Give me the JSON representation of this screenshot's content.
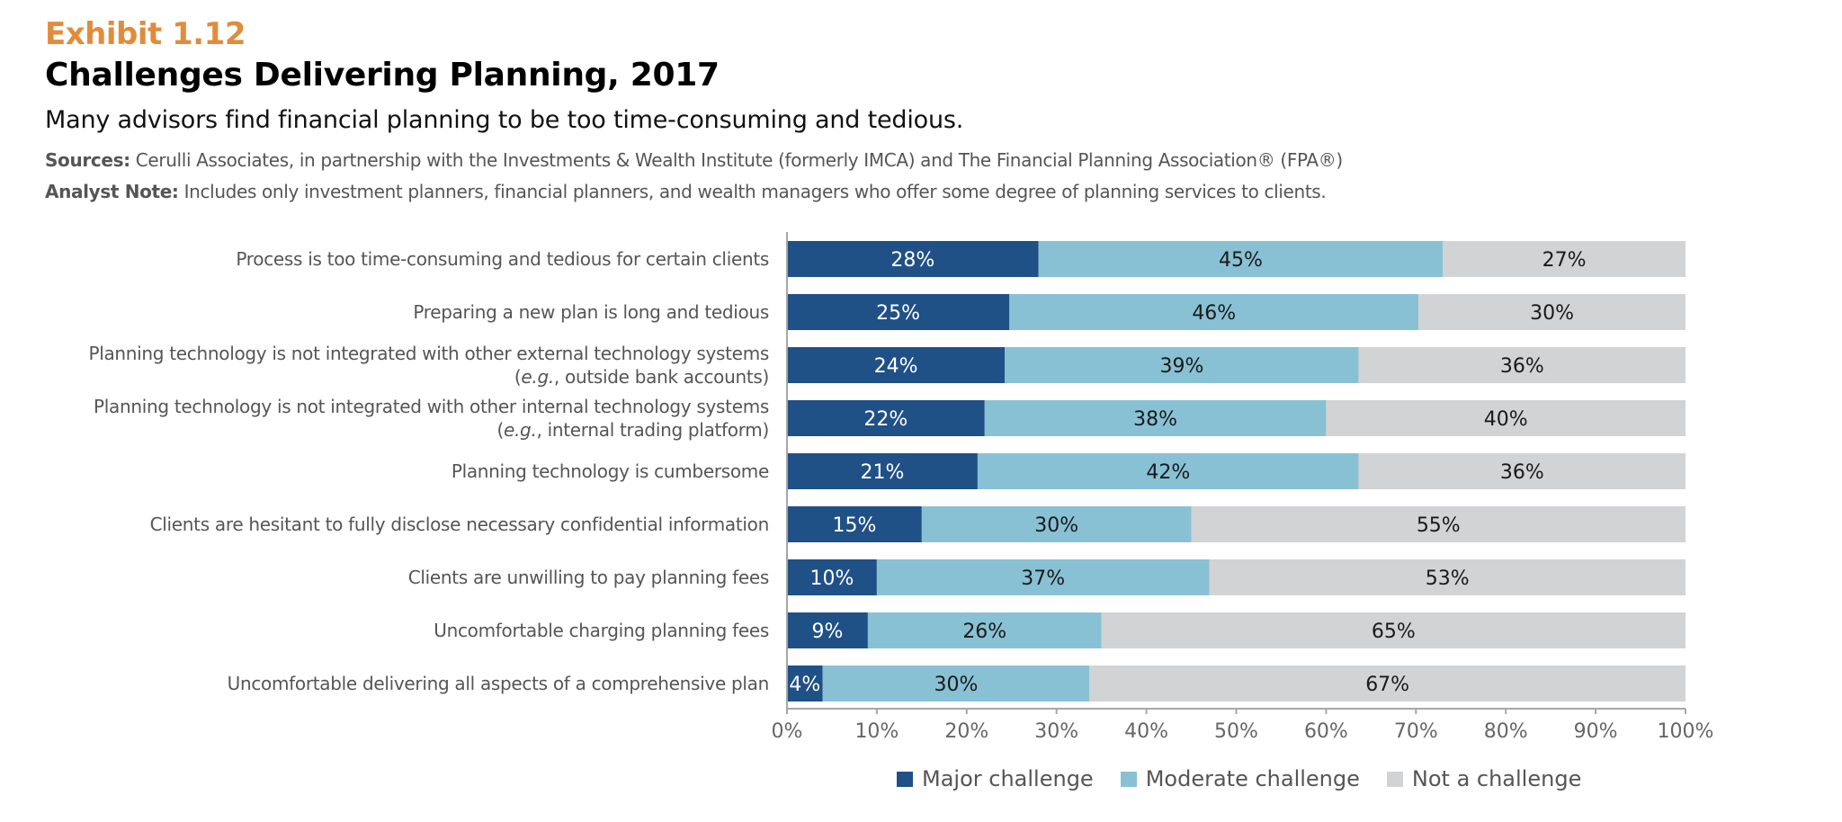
{
  "header": {
    "exhibit": "Exhibit 1.12",
    "title": "Challenges Delivering Planning, 2017",
    "subtitle": "Many advisors find financial planning to be too time-consuming and tedious.",
    "sources_label": "Sources:",
    "sources_text": " Cerulli Associates, in partnership with the Investments & Wealth Institute (formerly IMCA) and The Financial Planning Association® (FPA®)",
    "analyst_label": "Analyst Note:",
    "analyst_text": " Includes only investment planners, financial planners, and wealth managers who offer some degree of planning services to clients."
  },
  "colors": {
    "accent": "#e18c3c",
    "major": "#1f5086",
    "moderate": "#88c1d4",
    "not": "#d2d3d5"
  },
  "chart_data": {
    "type": "bar",
    "orientation": "horizontal",
    "stacked": true,
    "title": "Challenges Delivering Planning, 2017",
    "xlabel": "",
    "ylabel": "",
    "xlim": [
      0,
      100
    ],
    "x_ticks": [
      "0%",
      "10%",
      "20%",
      "30%",
      "40%",
      "50%",
      "60%",
      "70%",
      "80%",
      "90%",
      "100%"
    ],
    "grid": false,
    "legend_position": "bottom-center",
    "categories": [
      [
        "Process is too time-consuming and tedious for certain clients"
      ],
      [
        "Preparing a new plan is long and tedious"
      ],
      [
        "Planning technology is not integrated with other external technology systems",
        "(e.g., outside bank accounts)"
      ],
      [
        "Planning technology is not integrated with other internal technology systems",
        "(e.g., internal trading platform)"
      ],
      [
        "Planning technology is cumbersome"
      ],
      [
        "Clients are hesitant to fully disclose necessary confidential information"
      ],
      [
        "Clients are unwilling to pay planning fees"
      ],
      [
        "Uncomfortable charging planning fees"
      ],
      [
        "Uncomfortable delivering all aspects of a comprehensive plan"
      ]
    ],
    "series": [
      {
        "name": "Major challenge",
        "color_key": "major",
        "label_color": "#ffffff",
        "values": [
          28,
          25,
          24,
          22,
          21,
          15,
          10,
          9,
          4
        ]
      },
      {
        "name": "Moderate challenge",
        "color_key": "moderate",
        "label_color": "#1a1a1a",
        "values": [
          45,
          46,
          39,
          38,
          42,
          30,
          37,
          26,
          30
        ]
      },
      {
        "name": "Not a challenge",
        "color_key": "not",
        "label_color": "#1a1a1a",
        "values": [
          27,
          30,
          36,
          40,
          36,
          55,
          53,
          65,
          67
        ]
      }
    ],
    "value_suffix": "%"
  }
}
